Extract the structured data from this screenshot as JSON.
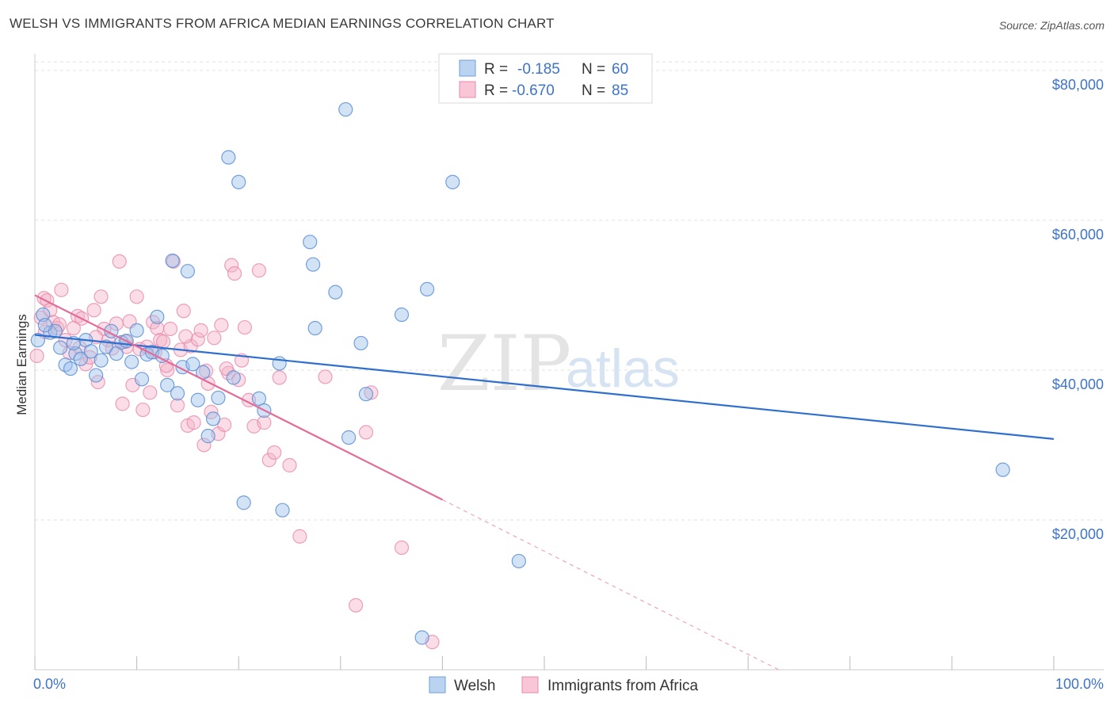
{
  "header": {
    "title": "WELSH VS IMMIGRANTS FROM AFRICA MEDIAN EARNINGS CORRELATION CHART",
    "source": "Source: ZipAtlas.com"
  },
  "legend": {
    "series1": {
      "r_label": "R =",
      "r_value": "-0.185",
      "n_label": "N =",
      "n_value": "60"
    },
    "series2": {
      "r_label": "R =",
      "r_value": "-0.670",
      "n_label": "N =",
      "n_value": "85"
    }
  },
  "watermark": {
    "zip": "ZIP",
    "atlas": "atlas"
  },
  "chart_data": {
    "type": "scatter",
    "xlabel": "",
    "ylabel": "Median Earnings",
    "xlim": [
      0,
      100
    ],
    "ylim": [
      0,
      82000
    ],
    "x_tick_labels": [
      "0.0%",
      "100.0%"
    ],
    "y_ticks": [
      20000,
      40000,
      60000,
      80000
    ],
    "y_tick_labels": [
      "$20,000",
      "$40,000",
      "$60,000",
      "$80,000"
    ],
    "grid": true,
    "legend_placement": "top-center",
    "colors": {
      "welsh": "#9dc0ea",
      "welsh_line": "#2f6fce",
      "africa": "#f4b3c8",
      "africa_line": "#e46b98"
    },
    "series": [
      {
        "name": "Welsh",
        "trend": {
          "x": [
            0,
            100
          ],
          "y": [
            44700,
            30800
          ]
        },
        "points": [
          [
            0.3,
            44000
          ],
          [
            0.8,
            47400
          ],
          [
            1.5,
            45000
          ],
          [
            2.0,
            45200
          ],
          [
            2.5,
            43000
          ],
          [
            3.0,
            40700
          ],
          [
            3.5,
            40200
          ],
          [
            4.0,
            42200
          ],
          [
            4.5,
            41500
          ],
          [
            5.0,
            44000
          ],
          [
            5.5,
            42500
          ],
          [
            6.0,
            39300
          ],
          [
            6.5,
            41300
          ],
          [
            7.0,
            43100
          ],
          [
            7.5,
            45200
          ],
          [
            8.0,
            42200
          ],
          [
            8.5,
            43700
          ],
          [
            9.0,
            43900
          ],
          [
            9.5,
            41100
          ],
          [
            10.0,
            45300
          ],
          [
            10.5,
            38800
          ],
          [
            11.0,
            42100
          ],
          [
            11.5,
            42400
          ],
          [
            12.0,
            47100
          ],
          [
            12.5,
            41900
          ],
          [
            13.0,
            38000
          ],
          [
            13.5,
            54600
          ],
          [
            14.0,
            36900
          ],
          [
            14.5,
            40400
          ],
          [
            15.0,
            53200
          ],
          [
            15.5,
            40800
          ],
          [
            16.0,
            36000
          ],
          [
            16.5,
            39700
          ],
          [
            17.0,
            31200
          ],
          [
            17.5,
            33500
          ],
          [
            18.0,
            36300
          ],
          [
            19.0,
            68400
          ],
          [
            19.5,
            39000
          ],
          [
            20.0,
            65100
          ],
          [
            20.5,
            22300
          ],
          [
            22.0,
            36200
          ],
          [
            22.5,
            34600
          ],
          [
            24.0,
            40900
          ],
          [
            24.3,
            21300
          ],
          [
            27.0,
            57100
          ],
          [
            27.3,
            54100
          ],
          [
            27.5,
            45600
          ],
          [
            29.5,
            50400
          ],
          [
            30.5,
            74800
          ],
          [
            30.8,
            31000
          ],
          [
            32.0,
            43600
          ],
          [
            32.5,
            36800
          ],
          [
            36.0,
            47400
          ],
          [
            38.5,
            50800
          ],
          [
            38.0,
            4300
          ],
          [
            41.0,
            65100
          ],
          [
            47.5,
            14500
          ],
          [
            95.0,
            26700
          ],
          [
            1.0,
            46000
          ],
          [
            3.8,
            43600
          ]
        ]
      },
      {
        "name": "Immigrants from Africa",
        "trend": {
          "x": [
            0,
            40
          ],
          "y": [
            50000,
            22700
          ]
        },
        "trend_dashed": {
          "x": [
            40,
            73
          ],
          "y": [
            22700,
            0
          ]
        },
        "points": [
          [
            0.2,
            41900
          ],
          [
            0.6,
            47000
          ],
          [
            0.9,
            49600
          ],
          [
            1.2,
            49300
          ],
          [
            1.5,
            48000
          ],
          [
            1.8,
            46400
          ],
          [
            2.2,
            45600
          ],
          [
            2.6,
            50700
          ],
          [
            3.0,
            44000
          ],
          [
            3.4,
            42300
          ],
          [
            3.8,
            45600
          ],
          [
            4.2,
            47200
          ],
          [
            4.6,
            46900
          ],
          [
            5.0,
            40800
          ],
          [
            5.4,
            41700
          ],
          [
            5.8,
            48000
          ],
          [
            6.2,
            38400
          ],
          [
            6.5,
            49800
          ],
          [
            6.8,
            45500
          ],
          [
            7.2,
            44000
          ],
          [
            7.6,
            42900
          ],
          [
            8.0,
            46200
          ],
          [
            8.3,
            54500
          ],
          [
            8.6,
            35500
          ],
          [
            9.0,
            43100
          ],
          [
            9.3,
            46500
          ],
          [
            9.6,
            38000
          ],
          [
            10.0,
            49800
          ],
          [
            10.3,
            42800
          ],
          [
            10.6,
            34700
          ],
          [
            11.0,
            43100
          ],
          [
            11.3,
            37000
          ],
          [
            11.6,
            46400
          ],
          [
            12.0,
            45600
          ],
          [
            12.3,
            44000
          ],
          [
            12.6,
            43800
          ],
          [
            13.0,
            40000
          ],
          [
            13.3,
            45500
          ],
          [
            13.6,
            54500
          ],
          [
            14.0,
            35300
          ],
          [
            14.3,
            42700
          ],
          [
            14.6,
            47900
          ],
          [
            15.0,
            32600
          ],
          [
            15.3,
            43200
          ],
          [
            15.6,
            33000
          ],
          [
            16.0,
            44100
          ],
          [
            16.3,
            45300
          ],
          [
            16.6,
            30000
          ],
          [
            17.0,
            38200
          ],
          [
            17.3,
            34400
          ],
          [
            17.6,
            44300
          ],
          [
            18.0,
            31500
          ],
          [
            18.3,
            46000
          ],
          [
            18.6,
            32700
          ],
          [
            19.0,
            39600
          ],
          [
            19.3,
            54000
          ],
          [
            19.6,
            52900
          ],
          [
            20.0,
            38700
          ],
          [
            20.3,
            41300
          ],
          [
            20.6,
            45700
          ],
          [
            21.0,
            36000
          ],
          [
            21.5,
            32500
          ],
          [
            22.0,
            53300
          ],
          [
            22.5,
            33000
          ],
          [
            23.0,
            28000
          ],
          [
            23.5,
            29000
          ],
          [
            24.0,
            39000
          ],
          [
            25.0,
            27300
          ],
          [
            26.0,
            17800
          ],
          [
            28.5,
            39100
          ],
          [
            31.5,
            8600
          ],
          [
            32.5,
            31700
          ],
          [
            33.0,
            37000
          ],
          [
            36.0,
            16300
          ],
          [
            39.0,
            3700
          ],
          [
            11.8,
            42400
          ],
          [
            8.9,
            43800
          ],
          [
            6.0,
            44400
          ],
          [
            2.4,
            46100
          ],
          [
            1.0,
            45100
          ],
          [
            14.8,
            44500
          ],
          [
            16.8,
            39900
          ],
          [
            18.8,
            40200
          ],
          [
            12.9,
            40600
          ],
          [
            4.4,
            43000
          ]
        ]
      }
    ]
  },
  "bottom_legend": {
    "welsh": "Welsh",
    "africa": "Immigrants from Africa"
  }
}
